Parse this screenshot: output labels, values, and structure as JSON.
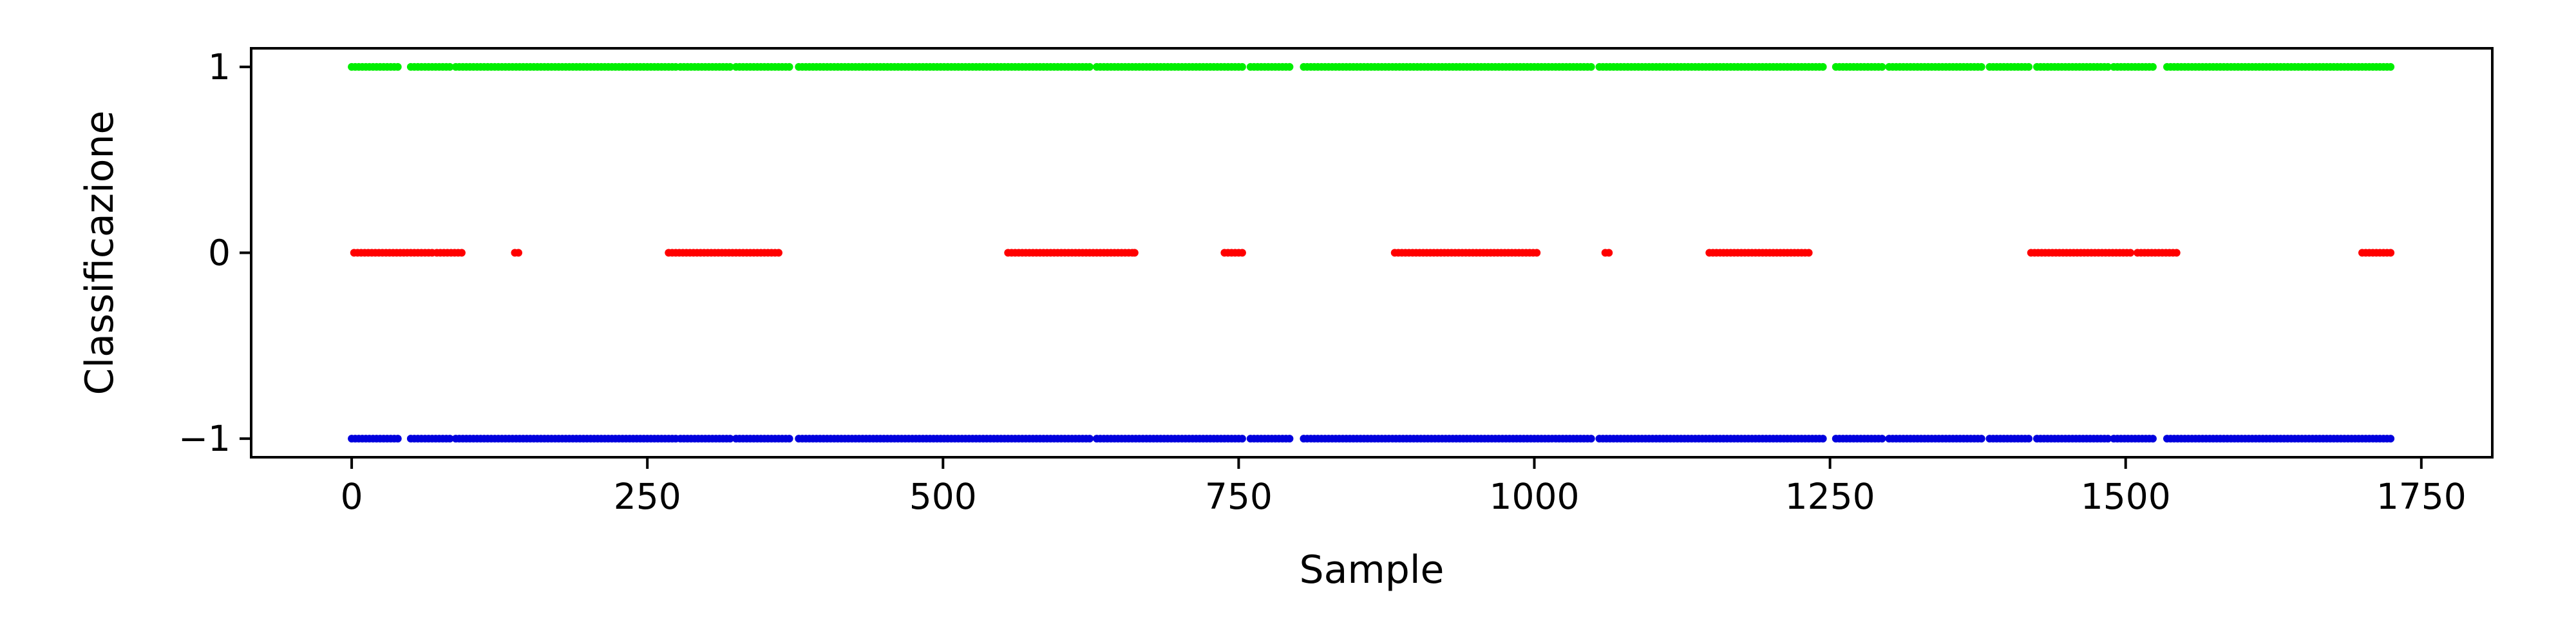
{
  "chart_data": {
    "type": "scatter",
    "title": "",
    "xlabel": "Sample",
    "ylabel": "Classificazione",
    "xlim": [
      -85,
      1810
    ],
    "ylim": [
      -1.1,
      1.1
    ],
    "xticks": [
      0,
      250,
      500,
      750,
      1000,
      1250,
      1500,
      1750
    ],
    "xtick_labels": [
      "0",
      "250",
      "500",
      "750",
      "1000",
      "1250",
      "1500",
      "1750"
    ],
    "yticks": [
      -1,
      0,
      1
    ],
    "ytick_labels": [
      "−1",
      "0",
      "1"
    ],
    "grid": false,
    "legend": "none",
    "series": [
      {
        "y": 1,
        "color": "#00ee00",
        "segments": [
          [
            0,
            40
          ],
          [
            50,
            85
          ],
          [
            88,
            275
          ],
          [
            278,
            320
          ],
          [
            325,
            370
          ],
          [
            378,
            625
          ],
          [
            630,
            755
          ],
          [
            760,
            795
          ],
          [
            805,
            1050
          ],
          [
            1055,
            1245
          ],
          [
            1255,
            1295
          ],
          [
            1300,
            1380
          ],
          [
            1385,
            1420
          ],
          [
            1425,
            1485
          ],
          [
            1490,
            1525
          ],
          [
            1535,
            1725
          ]
        ]
      },
      {
        "y": 0,
        "color": "#ff0000",
        "segments": [
          [
            2,
            68
          ],
          [
            72,
            94
          ],
          [
            138,
            142
          ],
          [
            268,
            362
          ],
          [
            555,
            660
          ],
          [
            662,
            664
          ],
          [
            738,
            755
          ],
          [
            882,
            982
          ],
          [
            984,
            1003
          ],
          [
            1060,
            1065
          ],
          [
            1148,
            1233
          ],
          [
            1420,
            1505
          ],
          [
            1510,
            1545
          ],
          [
            1700,
            1725
          ]
        ]
      },
      {
        "y": -1,
        "color": "#0000dd",
        "segments": [
          [
            0,
            40
          ],
          [
            50,
            85
          ],
          [
            88,
            275
          ],
          [
            278,
            320
          ],
          [
            325,
            370
          ],
          [
            378,
            625
          ],
          [
            630,
            755
          ],
          [
            760,
            795
          ],
          [
            805,
            1050
          ],
          [
            1055,
            1245
          ],
          [
            1255,
            1295
          ],
          [
            1300,
            1380
          ],
          [
            1385,
            1420
          ],
          [
            1425,
            1485
          ],
          [
            1490,
            1525
          ],
          [
            1535,
            1725
          ]
        ]
      }
    ]
  }
}
